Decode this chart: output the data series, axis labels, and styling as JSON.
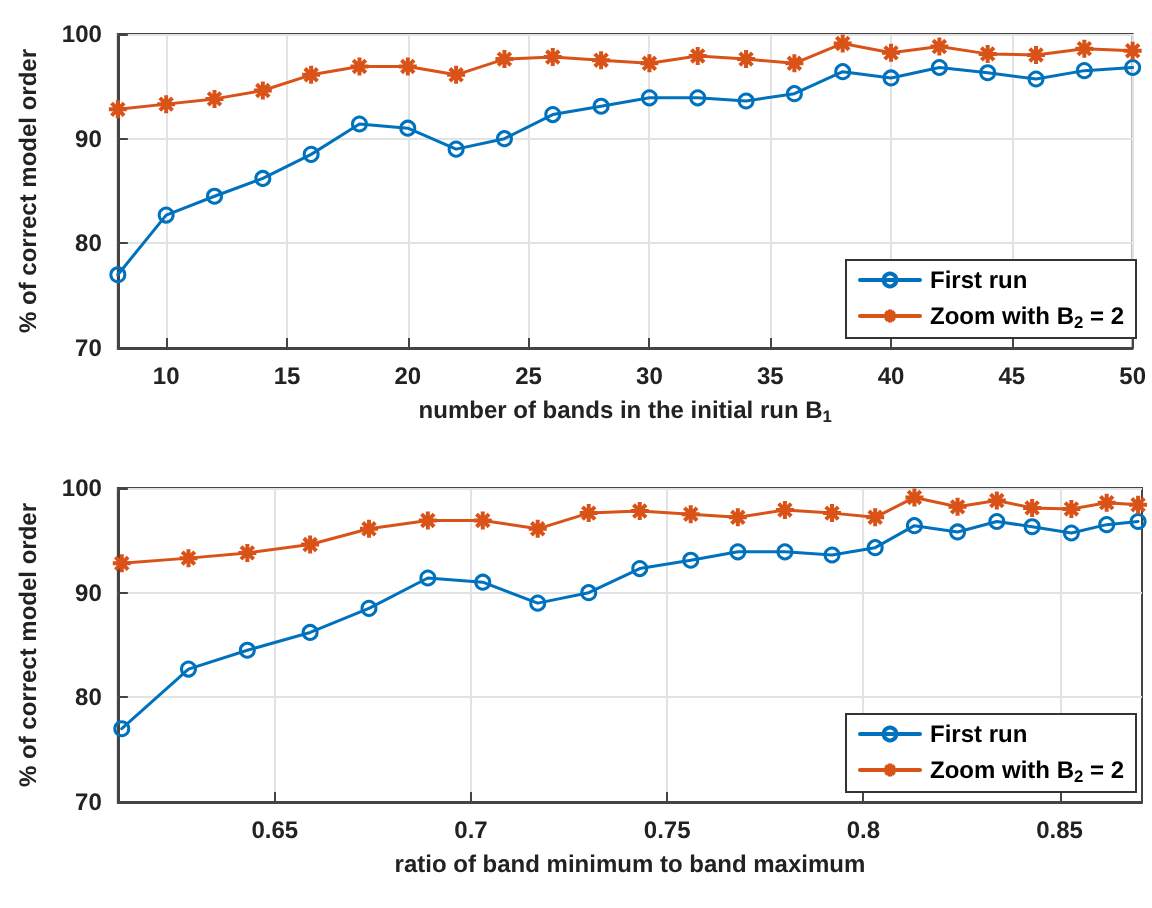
{
  "chart_data": [
    {
      "type": "line",
      "xlabel": "number of bands in the initial run B$_{1}$",
      "ylabel": "% of correct model order",
      "x": [
        8,
        10,
        12,
        14,
        16,
        18,
        20,
        22,
        24,
        26,
        28,
        30,
        32,
        34,
        36,
        38,
        40,
        42,
        44,
        46,
        48,
        50
      ],
      "xlim": [
        8,
        50
      ],
      "xticks": [
        10,
        15,
        20,
        25,
        30,
        35,
        40,
        45,
        50
      ],
      "ylim": [
        70,
        100
      ],
      "yticks": [
        70,
        80,
        90,
        100
      ],
      "grid": true,
      "legend": "bottom right",
      "line_style": "solid",
      "series": [
        {
          "name": "First run",
          "color": "#0072bd",
          "marker": "circle",
          "values": [
            77,
            82.7,
            84.5,
            86.2,
            88.5,
            91.4,
            91,
            89,
            90,
            92.3,
            93.1,
            93.9,
            93.9,
            93.6,
            94.3,
            96.4,
            95.8,
            96.8,
            96.3,
            95.7,
            96.5,
            96.8
          ]
        },
        {
          "name": "Zoom with B$_{2}$ = 2",
          "color": "#d95319",
          "marker": "cross",
          "values": [
            92.8,
            93.3,
            93.8,
            94.6,
            96.1,
            96.9,
            96.9,
            96.1,
            97.6,
            97.8,
            97.5,
            97.2,
            97.9,
            97.6,
            97.2,
            99.1,
            98.2,
            98.8,
            98.1,
            98,
            98.6,
            98.4
          ]
        }
      ]
    },
    {
      "type": "line",
      "xlabel": "ratio of band minimum to band maximum",
      "ylabel": "% of correct model order",
      "x": [
        0.611,
        0.628,
        0.643,
        0.659,
        0.674,
        0.689,
        0.703,
        0.717,
        0.73,
        0.743,
        0.756,
        0.768,
        0.78,
        0.792,
        0.803,
        0.813,
        0.824,
        0.834,
        0.843,
        0.853,
        0.862,
        0.87
      ],
      "xlim": [
        0.61,
        0.871
      ],
      "xticks": [
        0.65,
        0.7,
        0.75,
        0.8,
        0.85
      ],
      "ylim": [
        70,
        100
      ],
      "yticks": [
        70,
        80,
        90,
        100
      ],
      "grid": true,
      "legend": "bottom right",
      "line_style": "solid",
      "series": [
        {
          "name": "First run",
          "color": "#0072bd",
          "marker": "circle",
          "values": [
            77,
            82.7,
            84.5,
            86.2,
            88.5,
            91.4,
            91,
            89,
            90,
            92.3,
            93.1,
            93.9,
            93.9,
            93.6,
            94.3,
            96.4,
            95.8,
            96.8,
            96.3,
            95.7,
            96.5,
            96.8
          ]
        },
        {
          "name": "Zoom with B$_{2}$ = 2",
          "color": "#d95319",
          "marker": "cross",
          "values": [
            92.8,
            93.3,
            93.8,
            94.6,
            96.1,
            96.9,
            96.9,
            96.1,
            97.6,
            97.8,
            97.5,
            97.2,
            97.9,
            97.6,
            97.2,
            99.1,
            98.2,
            98.8,
            98.1,
            98,
            98.6,
            98.4
          ]
        }
      ]
    }
  ]
}
